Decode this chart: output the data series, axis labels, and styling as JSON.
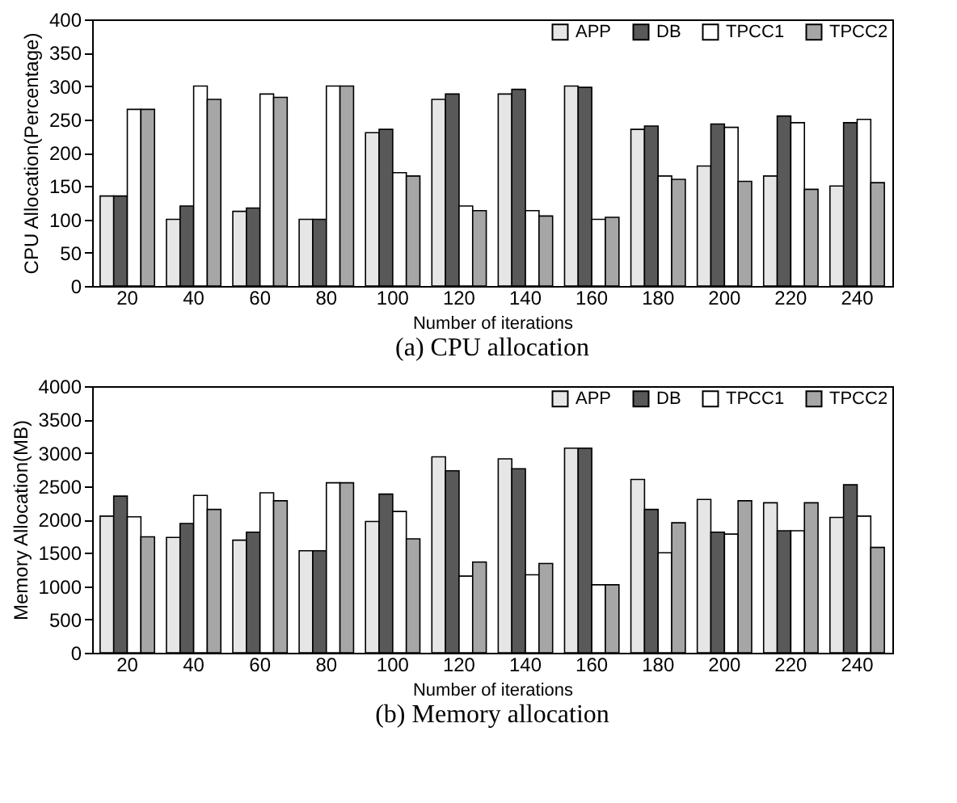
{
  "chart_data": [
    {
      "type": "bar",
      "annotations": [
        "(a) CPU allocation"
      ],
      "xlabel": "Number of iterations",
      "ylabel": "CPU Allocation(Percentage)",
      "categories": [
        "20",
        "40",
        "60",
        "80",
        "100",
        "120",
        "140",
        "160",
        "180",
        "200",
        "220",
        "240"
      ],
      "ylim": [
        0,
        400
      ],
      "yticks": [
        0,
        50,
        100,
        150,
        200,
        250,
        300,
        350,
        400
      ],
      "grid": false,
      "legend": "top right",
      "series": [
        {
          "name": "APP",
          "color": "#e6e6e6",
          "values": [
            135,
            100,
            112,
            100,
            230,
            280,
            288,
            300,
            235,
            180,
            165,
            150
          ]
        },
        {
          "name": "DB",
          "color": "#595959",
          "values": [
            135,
            120,
            117,
            100,
            235,
            288,
            295,
            298,
            240,
            243,
            255,
            245
          ]
        },
        {
          "name": "TPCC1",
          "color": "#ffffff",
          "values": [
            265,
            300,
            288,
            300,
            170,
            120,
            113,
            100,
            165,
            238,
            245,
            250
          ]
        },
        {
          "name": "TPCC2",
          "color": "#a6a6a6",
          "values": [
            265,
            280,
            283,
            300,
            165,
            113,
            105,
            103,
            160,
            157,
            145,
            155
          ]
        }
      ]
    },
    {
      "type": "bar",
      "annotations": [
        "(b) Memory allocation"
      ],
      "xlabel": "Number of iterations",
      "ylabel": "Memory Allocation(MB)",
      "categories": [
        "20",
        "40",
        "60",
        "80",
        "100",
        "120",
        "140",
        "160",
        "180",
        "200",
        "220",
        "240"
      ],
      "ylim": [
        0,
        4000
      ],
      "yticks": [
        0,
        500,
        1000,
        1500,
        2000,
        2500,
        3000,
        3500,
        4000
      ],
      "grid": false,
      "legend": "top right",
      "series": [
        {
          "name": "APP",
          "color": "#e6e6e6",
          "values": [
            2050,
            1730,
            1690,
            1530,
            1970,
            2940,
            2910,
            3070,
            2600,
            2300,
            2250,
            2030
          ]
        },
        {
          "name": "DB",
          "color": "#595959",
          "values": [
            2350,
            1940,
            1810,
            1530,
            2380,
            2730,
            2760,
            3070,
            2150,
            1810,
            1830,
            2520
          ]
        },
        {
          "name": "TPCC1",
          "color": "#ffffff",
          "values": [
            2040,
            2360,
            2400,
            2550,
            2120,
            1150,
            1170,
            1020,
            1500,
            1780,
            1830,
            2050
          ]
        },
        {
          "name": "TPCC2",
          "color": "#a6a6a6",
          "values": [
            1740,
            2150,
            2280,
            2550,
            1710,
            1360,
            1340,
            1020,
            1950,
            2280,
            2250,
            1580
          ]
        }
      ]
    }
  ]
}
